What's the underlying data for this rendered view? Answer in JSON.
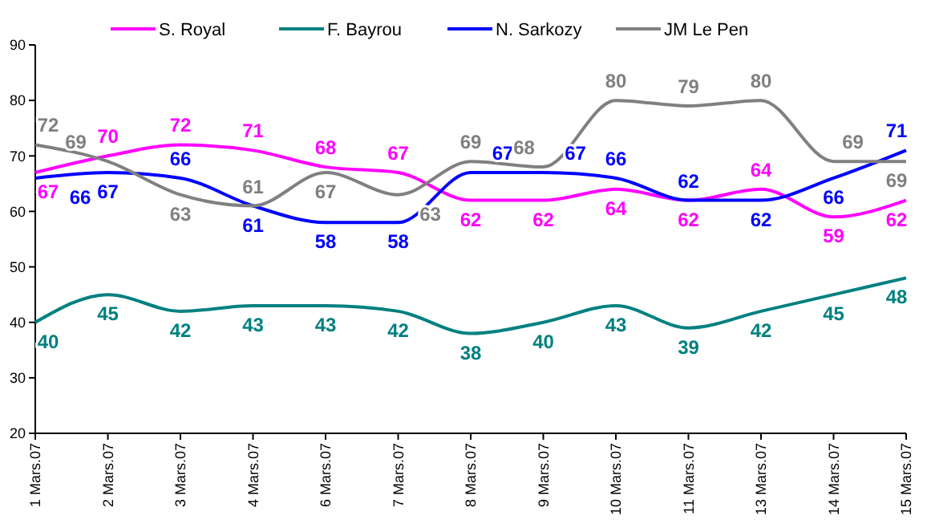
{
  "chart_data": {
    "type": "line",
    "categories": [
      "1 Mars.07",
      "2 Mars.07",
      "3 Mars.07",
      "4 Mars.07",
      "6 Mars.07",
      "7 Mars.07",
      "8 Mars.07",
      "9 Mars.07",
      "10 Mars.07",
      "11 Mars.07",
      "13 Mars.07",
      "14 Mars.07",
      "15 Mars.07"
    ],
    "series": [
      {
        "name": "S. Royal",
        "color": "#ff00ff",
        "values": [
          67,
          70,
          72,
          71,
          68,
          67,
          62,
          62,
          64,
          62,
          64,
          59,
          62
        ]
      },
      {
        "name": "F. Bayrou",
        "color": "#008080",
        "values": [
          40,
          45,
          42,
          43,
          43,
          42,
          38,
          40,
          43,
          39,
          42,
          45,
          48
        ]
      },
      {
        "name": "N. Sarkozy",
        "color": "#0000ff",
        "values": [
          66,
          67,
          66,
          61,
          58,
          58,
          67,
          67,
          66,
          62,
          62,
          66,
          71
        ]
      },
      {
        "name": "JM Le Pen",
        "color": "#808080",
        "values": [
          72,
          69,
          63,
          61,
          67,
          63,
          69,
          68,
          80,
          79,
          80,
          69,
          69
        ]
      }
    ],
    "ylim": [
      20,
      90
    ],
    "yticks": [
      20,
      30,
      40,
      50,
      60,
      70,
      80,
      90
    ],
    "grid": false,
    "legend": "top",
    "data_labels": true,
    "marker": "none",
    "line_style": "solid"
  }
}
